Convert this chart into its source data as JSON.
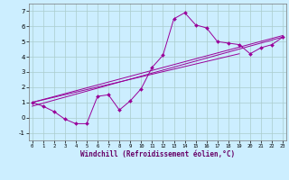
{
  "xlabel": "Windchill (Refroidissement éolien,°C)",
  "bg_color": "#cceeff",
  "grid_color": "#aacccc",
  "line_color": "#990099",
  "xlim": [
    0,
    23
  ],
  "ylim": [
    -1.5,
    7.5
  ],
  "xticks": [
    0,
    1,
    2,
    3,
    4,
    5,
    6,
    7,
    8,
    9,
    10,
    11,
    12,
    13,
    14,
    15,
    16,
    17,
    18,
    19,
    20,
    21,
    22,
    23
  ],
  "yticks": [
    -1,
    0,
    1,
    2,
    3,
    4,
    5,
    6,
    7
  ],
  "data_x": [
    0,
    1,
    2,
    3,
    4,
    5,
    6,
    7,
    8,
    9,
    10,
    11,
    12,
    13,
    14,
    15,
    16,
    17,
    18,
    19,
    20,
    21,
    22,
    23
  ],
  "data_y": [
    1.0,
    0.75,
    0.4,
    -0.1,
    -0.4,
    -0.4,
    1.4,
    1.5,
    0.5,
    1.1,
    1.9,
    3.3,
    4.1,
    6.5,
    6.9,
    6.1,
    5.9,
    5.0,
    4.9,
    4.8,
    4.2,
    4.6,
    4.8,
    5.3
  ],
  "line1_x": [
    0,
    23
  ],
  "line1_y": [
    1.0,
    5.4
  ],
  "line2_x": [
    0,
    23
  ],
  "line2_y": [
    0.75,
    5.3
  ],
  "line3_x": [
    0,
    19
  ],
  "line3_y": [
    1.0,
    4.2
  ]
}
